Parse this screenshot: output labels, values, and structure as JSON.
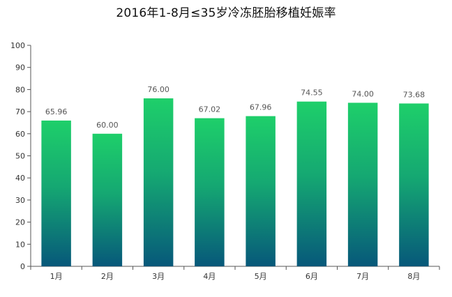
{
  "chart_data": {
    "type": "bar",
    "title": "2016年1-8月≤35岁冷冻胚胎移植妊娠率",
    "categories": [
      "1月",
      "2月",
      "3月",
      "4月",
      "5月",
      "6月",
      "7月",
      "8月"
    ],
    "values": [
      65.96,
      60.0,
      76.0,
      67.02,
      67.96,
      74.55,
      74.0,
      73.68
    ],
    "value_labels": [
      "65.96",
      "60.00",
      "76.00",
      "67.02",
      "67.96",
      "74.55",
      "74.00",
      "73.68"
    ],
    "ylim": [
      0,
      100
    ],
    "yticks": [
      0,
      10,
      20,
      30,
      40,
      50,
      60,
      70,
      80,
      90,
      100
    ],
    "grid": false,
    "colors": {
      "bar_top": "#1ecf6a",
      "bar_bottom": "#07587a",
      "axis": "#555555"
    }
  }
}
